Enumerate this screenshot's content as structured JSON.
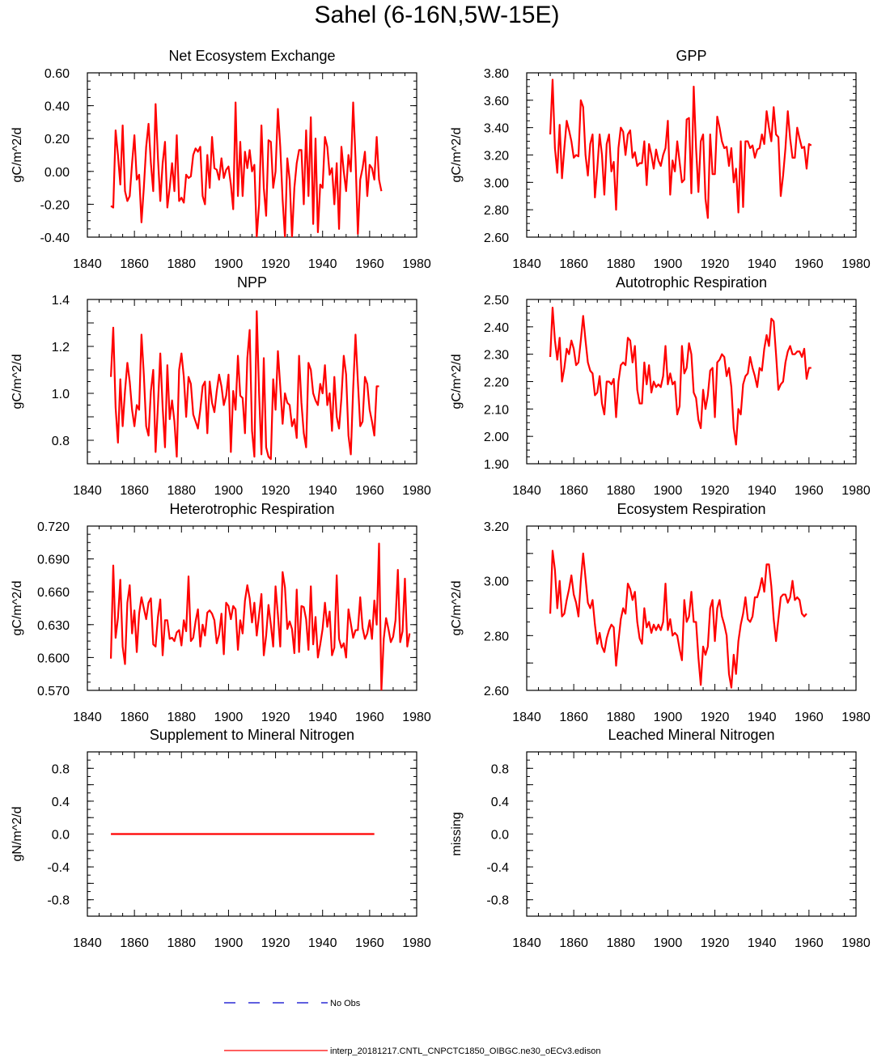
{
  "page_title": "Sahel (6-16N,5W-15E)",
  "colors": {
    "model": "#ff0000",
    "obs": "#0000cc",
    "axes": "#000000"
  },
  "legend": {
    "obs_label": "No Obs",
    "model_label": "interp_20181217.CNTL_CNPCTC1850_OIBGC.ne30_oECv3.edison"
  },
  "chart_data": [
    {
      "id": "nee",
      "type": "line",
      "title": "Net Ecosystem Exchange",
      "ylabel": "gC/m^2/d",
      "xlim": [
        1840,
        1980
      ],
      "ylim": [
        -0.4,
        0.6
      ],
      "xticks": [
        "1840",
        "1860",
        "1880",
        "1900",
        "1920",
        "1940",
        "1960",
        "1980"
      ],
      "yticks": [
        -0.4,
        -0.2,
        0.0,
        0.2,
        0.4,
        0.6
      ],
      "ytick_labels": [
        "-0.40",
        "-0.20",
        "0.00",
        "0.20",
        "0.40",
        "0.60"
      ],
      "ymajor": 0.2,
      "yminor": 0.05,
      "series": [
        {
          "name": "model",
          "x0": 1850,
          "values": [
            -0.21,
            -0.22,
            0.25,
            0.1,
            -0.08,
            0.28,
            -0.12,
            -0.18,
            -0.15,
            0.05,
            0.22,
            -0.05,
            -0.02,
            -0.31,
            -0.1,
            0.15,
            0.29,
            0.05,
            -0.12,
            0.41,
            0.08,
            -0.18,
            0.05,
            0.18,
            -0.22,
            -0.1,
            0.05,
            -0.12,
            0.22,
            -0.18,
            -0.16,
            -0.19,
            -0.02,
            -0.04,
            -0.03,
            0.1,
            0.14,
            0.12,
            0.15,
            -0.15,
            -0.2,
            0.1,
            -0.1,
            0.21,
            0.02,
            0.01,
            -0.05,
            0.08,
            -0.04,
            0.01,
            0.03,
            -0.08,
            -0.23,
            0.42,
            -0.15,
            0.18,
            -0.15,
            0.12,
            0.02,
            0.13,
            0.0,
            0.04,
            -0.4,
            -0.2,
            0.28,
            -0.1,
            -0.27,
            0.19,
            0.18,
            -0.1,
            0.0,
            0.38,
            0.15,
            -0.17,
            -0.4,
            0.08,
            -0.05,
            -0.4,
            -0.1,
            0.05,
            0.13,
            0.13,
            -0.2,
            0.25,
            -0.15,
            0.33,
            -0.32,
            0.2,
            -0.37,
            -0.08,
            -0.1,
            0.21,
            0.15,
            -0.02,
            0.02,
            -0.2,
            0.05,
            -0.35,
            0.15,
            0.0,
            -0.12,
            0.1,
            0.0,
            0.42,
            0.08,
            -0.38,
            -0.05,
            0.02,
            0.12,
            -0.15,
            0.04,
            0.02,
            -0.05,
            0.21,
            -0.05,
            -0.12
          ]
        }
      ]
    },
    {
      "id": "gpp",
      "type": "line",
      "title": "GPP",
      "ylabel": "gC/m^2/d",
      "xlim": [
        1840,
        1980
      ],
      "ylim": [
        2.6,
        3.8
      ],
      "xticks": [
        "1840",
        "1860",
        "1880",
        "1900",
        "1920",
        "1940",
        "1960",
        "1980"
      ],
      "yticks": [
        2.6,
        2.8,
        3.0,
        3.2,
        3.4,
        3.6,
        3.8
      ],
      "ytick_labels": [
        "2.60",
        "2.80",
        "3.00",
        "3.20",
        "3.40",
        "3.60",
        "3.80"
      ],
      "ymajor": 0.2,
      "yminor": 0.05,
      "series": [
        {
          "name": "model",
          "x0": 1850,
          "values": [
            3.35,
            3.75,
            3.25,
            3.07,
            3.42,
            3.03,
            3.25,
            3.45,
            3.38,
            3.3,
            3.18,
            3.2,
            3.19,
            3.6,
            3.55,
            3.2,
            3.05,
            3.28,
            3.35,
            2.89,
            3.1,
            3.35,
            3.2,
            2.91,
            3.28,
            3.35,
            3.08,
            3.15,
            2.8,
            3.25,
            3.4,
            3.37,
            3.2,
            3.35,
            3.38,
            3.18,
            3.22,
            3.12,
            3.14,
            3.14,
            3.3,
            2.98,
            3.28,
            3.2,
            3.1,
            3.24,
            3.16,
            3.12,
            3.2,
            3.25,
            3.45,
            2.91,
            3.16,
            3.08,
            3.3,
            3.15,
            3.0,
            3.02,
            3.46,
            3.47,
            2.92,
            3.7,
            3.25,
            2.93,
            3.3,
            3.35,
            2.88,
            2.74,
            3.35,
            3.06,
            3.06,
            3.48,
            3.4,
            3.3,
            3.25,
            3.26,
            3.12,
            3.25,
            3.0,
            3.1,
            2.78,
            3.3,
            2.82,
            3.3,
            3.3,
            3.25,
            3.27,
            3.18,
            3.24,
            3.25,
            3.35,
            3.28,
            3.52,
            3.4,
            3.3,
            3.55,
            3.35,
            3.33,
            2.9,
            3.05,
            3.25,
            3.52,
            3.32,
            3.18,
            3.18,
            3.4,
            3.32,
            3.25,
            3.26,
            3.1,
            3.28,
            3.27
          ]
        }
      ]
    },
    {
      "id": "npp",
      "type": "line",
      "title": "NPP",
      "ylabel": "gC/m^2/d",
      "xlim": [
        1840,
        1980
      ],
      "ylim": [
        0.7,
        1.4
      ],
      "xticks": [
        "1840",
        "1860",
        "1880",
        "1900",
        "1920",
        "1940",
        "1960",
        "1980"
      ],
      "yticks": [
        0.8,
        1.0,
        1.2,
        1.4
      ],
      "ytick_labels": [
        "0.8",
        "1.0",
        "1.2",
        "1.4"
      ],
      "ymajor": 0.1,
      "yminor": 0.05,
      "series": [
        {
          "name": "model",
          "x0": 1850,
          "values": [
            1.07,
            1.28,
            0.94,
            0.79,
            1.06,
            0.86,
            1.01,
            1.13,
            1.05,
            0.93,
            0.86,
            0.95,
            0.93,
            1.25,
            1.08,
            0.86,
            0.82,
            1.01,
            1.1,
            0.75,
            0.95,
            1.17,
            0.94,
            0.77,
            1.12,
            0.89,
            0.97,
            0.88,
            0.73,
            1.1,
            1.17,
            1.07,
            0.9,
            1.07,
            1.04,
            0.91,
            0.88,
            0.85,
            0.93,
            1.03,
            1.05,
            0.83,
            1.05,
            0.96,
            0.92,
            1.01,
            1.08,
            1.03,
            0.95,
            0.99,
            1.08,
            0.75,
            1.01,
            0.93,
            1.16,
            0.99,
            0.98,
            0.83,
            1.15,
            1.27,
            0.84,
            0.73,
            1.35,
            1.0,
            0.74,
            1.15,
            0.77,
            0.73,
            0.72,
            1.06,
            0.93,
            1.18,
            1.03,
            0.87,
            1.0,
            0.96,
            0.95,
            0.86,
            0.89,
            0.81,
            1.16,
            0.96,
            0.83,
            0.77,
            1.13,
            1.1,
            1.0,
            0.97,
            0.95,
            1.04,
            1.0,
            1.12,
            0.95,
            1.0,
            0.84,
            1.07,
            0.9,
            0.85,
            0.98,
            1.16,
            1.08,
            0.82,
            0.74,
            1.02,
            1.25,
            1.05,
            0.86,
            0.88,
            1.07,
            1.04,
            0.93,
            0.88,
            0.82,
            1.03,
            1.03
          ]
        }
      ]
    },
    {
      "id": "ar",
      "type": "line",
      "title": "Autotrophic Respiration",
      "ylabel": "gC/m^2/d",
      "xlim": [
        1840,
        1980
      ],
      "ylim": [
        1.9,
        2.5
      ],
      "xticks": [
        "1840",
        "1860",
        "1880",
        "1900",
        "1920",
        "1940",
        "1960",
        "1980"
      ],
      "yticks": [
        1.9,
        2.0,
        2.1,
        2.2,
        2.3,
        2.4,
        2.5
      ],
      "ytick_labels": [
        "1.90",
        "2.00",
        "2.10",
        "2.20",
        "2.30",
        "2.40",
        "2.50"
      ],
      "ymajor": 0.1,
      "yminor": 0.025,
      "series": [
        {
          "name": "model",
          "x0": 1850,
          "values": [
            2.29,
            2.47,
            2.35,
            2.28,
            2.36,
            2.2,
            2.25,
            2.32,
            2.3,
            2.35,
            2.32,
            2.26,
            2.27,
            2.35,
            2.44,
            2.35,
            2.27,
            2.24,
            2.23,
            2.15,
            2.16,
            2.22,
            2.12,
            2.08,
            2.2,
            2.2,
            2.19,
            2.21,
            2.07,
            2.2,
            2.26,
            2.27,
            2.26,
            2.36,
            2.35,
            2.27,
            2.33,
            2.17,
            2.12,
            2.12,
            2.27,
            2.19,
            2.26,
            2.16,
            2.2,
            2.18,
            2.19,
            2.18,
            2.22,
            2.33,
            2.19,
            2.23,
            2.19,
            2.2,
            2.08,
            2.11,
            2.33,
            2.23,
            2.25,
            2.34,
            2.3,
            2.16,
            2.14,
            2.06,
            2.03,
            2.17,
            2.1,
            2.15,
            2.24,
            2.25,
            2.07,
            2.27,
            2.28,
            2.3,
            2.29,
            2.22,
            2.25,
            2.18,
            2.03,
            1.97,
            2.1,
            2.08,
            2.19,
            2.22,
            2.23,
            2.29,
            2.25,
            2.22,
            2.18,
            2.25,
            2.24,
            2.32,
            2.37,
            2.33,
            2.43,
            2.42,
            2.3,
            2.17,
            2.19,
            2.2,
            2.27,
            2.31,
            2.33,
            2.3,
            2.3,
            2.31,
            2.31,
            2.29,
            2.32,
            2.21,
            2.25,
            2.25
          ]
        }
      ]
    },
    {
      "id": "hr",
      "type": "line",
      "title": "Heterotrophic Respiration",
      "ylabel": "gC/m^2/d",
      "xlim": [
        1840,
        1980
      ],
      "ylim": [
        0.57,
        0.72
      ],
      "xticks": [
        "1840",
        "1860",
        "1880",
        "1900",
        "1920",
        "1940",
        "1960",
        "1980"
      ],
      "yticks": [
        0.57,
        0.6,
        0.63,
        0.66,
        0.69,
        0.72
      ],
      "ytick_labels": [
        "0.570",
        "0.600",
        "0.630",
        "0.660",
        "0.690",
        "0.720"
      ],
      "ymajor": 0.03,
      "yminor": 0.0075,
      "series": [
        {
          "name": "model",
          "x0": 1850,
          "values": [
            0.599,
            0.684,
            0.618,
            0.636,
            0.671,
            0.61,
            0.594,
            0.65,
            0.666,
            0.622,
            0.643,
            0.605,
            0.64,
            0.655,
            0.645,
            0.635,
            0.65,
            0.654,
            0.612,
            0.61,
            0.637,
            0.653,
            0.602,
            0.634,
            0.634,
            0.617,
            0.618,
            0.615,
            0.623,
            0.625,
            0.611,
            0.634,
            0.624,
            0.674,
            0.615,
            0.618,
            0.633,
            0.644,
            0.61,
            0.63,
            0.62,
            0.641,
            0.643,
            0.64,
            0.634,
            0.613,
            0.621,
            0.64,
            0.603,
            0.65,
            0.647,
            0.635,
            0.647,
            0.644,
            0.607,
            0.634,
            0.622,
            0.652,
            0.666,
            0.654,
            0.632,
            0.65,
            0.62,
            0.639,
            0.658,
            0.602,
            0.62,
            0.648,
            0.63,
            0.61,
            0.665,
            0.639,
            0.61,
            0.678,
            0.664,
            0.626,
            0.633,
            0.626,
            0.604,
            0.662,
            0.605,
            0.647,
            0.646,
            0.635,
            0.607,
            0.665,
            0.612,
            0.637,
            0.6,
            0.612,
            0.626,
            0.65,
            0.628,
            0.642,
            0.602,
            0.609,
            0.675,
            0.617,
            0.609,
            0.613,
            0.6,
            0.644,
            0.631,
            0.618,
            0.625,
            0.625,
            0.655,
            0.627,
            0.617,
            0.622,
            0.634,
            0.617,
            0.652,
            0.63,
            0.704,
            0.57,
            0.617,
            0.636,
            0.626,
            0.614,
            0.619,
            0.634,
            0.68,
            0.614,
            0.624,
            0.672,
            0.61,
            0.622
          ]
        }
      ]
    },
    {
      "id": "er",
      "type": "line",
      "title": "Ecosystem Respiration",
      "ylabel": "gC/m^2/d",
      "xlim": [
        1840,
        1980
      ],
      "ylim": [
        2.6,
        3.2
      ],
      "xticks": [
        "1840",
        "1860",
        "1880",
        "1900",
        "1920",
        "1940",
        "1960",
        "1980"
      ],
      "yticks": [
        2.6,
        2.8,
        3.0,
        3.2
      ],
      "ytick_labels": [
        "2.60",
        "2.80",
        "3.00",
        "3.20"
      ],
      "ymajor": 0.1,
      "yminor": 0.05,
      "series": [
        {
          "name": "model",
          "x0": 1850,
          "values": [
            2.88,
            3.11,
            3.04,
            2.9,
            3.0,
            2.87,
            2.88,
            2.93,
            2.97,
            3.02,
            2.95,
            2.92,
            2.87,
            3.0,
            3.1,
            3.01,
            2.92,
            2.9,
            2.93,
            2.84,
            2.77,
            2.81,
            2.76,
            2.74,
            2.79,
            2.82,
            2.84,
            2.83,
            2.69,
            2.78,
            2.86,
            2.9,
            2.88,
            2.99,
            2.97,
            2.93,
            2.96,
            2.85,
            2.79,
            2.77,
            2.9,
            2.83,
            2.85,
            2.81,
            2.84,
            2.82,
            2.84,
            2.82,
            2.85,
            2.99,
            2.82,
            2.86,
            2.8,
            2.81,
            2.8,
            2.75,
            2.71,
            2.93,
            2.85,
            2.87,
            2.96,
            2.85,
            2.85,
            2.72,
            2.62,
            2.76,
            2.73,
            2.76,
            2.9,
            2.93,
            2.78,
            2.9,
            2.93,
            2.87,
            2.84,
            2.8,
            2.66,
            2.61,
            2.73,
            2.66,
            2.78,
            2.84,
            2.88,
            2.94,
            2.86,
            2.85,
            2.87,
            2.94,
            2.94,
            2.97,
            3.01,
            2.96,
            3.06,
            3.06,
            2.98,
            2.86,
            2.78,
            2.86,
            2.94,
            2.95,
            2.95,
            2.92,
            2.94,
            3.0,
            2.93,
            2.94,
            2.93,
            2.88,
            2.87,
            2.88
          ]
        }
      ]
    },
    {
      "id": "smn",
      "type": "line",
      "title": "Supplement to Mineral Nitrogen",
      "ylabel": "gN/m^2/d",
      "xlim": [
        1840,
        1980
      ],
      "ylim": [
        -1.0,
        1.0
      ],
      "xticks": [
        "1840",
        "1860",
        "1880",
        "1900",
        "1920",
        "1940",
        "1960",
        "1980"
      ],
      "yticks": [
        -0.8,
        -0.4,
        0.0,
        0.4,
        0.8
      ],
      "ytick_labels": [
        "-0.8",
        "-0.4",
        "0.0",
        "0.4",
        "0.8"
      ],
      "ymajor": 0.2,
      "yminor": 0.1,
      "series": [
        {
          "name": "model",
          "x": [
            1850,
            1962
          ],
          "values": [
            0.0,
            0.0
          ]
        }
      ]
    },
    {
      "id": "lmn",
      "type": "line",
      "title": "Leached Mineral Nitrogen",
      "ylabel": "missing",
      "xlim": [
        1840,
        1980
      ],
      "ylim": [
        -1.0,
        1.0
      ],
      "xticks": [
        "1840",
        "1860",
        "1880",
        "1900",
        "1920",
        "1940",
        "1960",
        "1980"
      ],
      "yticks": [
        -0.8,
        -0.4,
        0.0,
        0.4,
        0.8
      ],
      "ytick_labels": [
        "-0.8",
        "-0.4",
        "0.0",
        "0.4",
        "0.8"
      ],
      "ymajor": 0.2,
      "yminor": 0.1,
      "series": []
    }
  ]
}
